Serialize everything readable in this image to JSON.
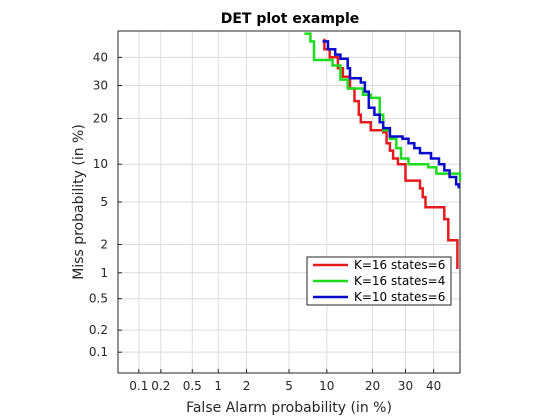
{
  "chart_data": {
    "type": "line",
    "title": "DET plot example",
    "xlabel": "False Alarm probability (in %)",
    "ylabel": "Miss probability (in %)",
    "x_scale": "probit",
    "y_scale": "probit",
    "xlim": [
      0.05,
      50
    ],
    "ylim": [
      0.05,
      50
    ],
    "grid": true,
    "legend_position": "lower-right",
    "x_ticks": [
      {
        "value": 0.1,
        "label": "0.1"
      },
      {
        "value": 0.2,
        "label": "0.2"
      },
      {
        "value": 0.5,
        "label": "0.5"
      },
      {
        "value": 1,
        "label": "1"
      },
      {
        "value": 2,
        "label": "2"
      },
      {
        "value": 5,
        "label": "5"
      },
      {
        "value": 10,
        "label": "10"
      },
      {
        "value": 20,
        "label": "20"
      },
      {
        "value": 30,
        "label": "30"
      },
      {
        "value": 40,
        "label": "40"
      }
    ],
    "y_ticks": [
      {
        "value": 0.1,
        "label": "0.1"
      },
      {
        "value": 0.2,
        "label": "0.2"
      },
      {
        "value": 0.5,
        "label": "0.5"
      },
      {
        "value": 1,
        "label": "1"
      },
      {
        "value": 2,
        "label": "2"
      },
      {
        "value": 5,
        "label": "5"
      },
      {
        "value": 10,
        "label": "10"
      },
      {
        "value": 20,
        "label": "20"
      },
      {
        "value": 30,
        "label": "30"
      },
      {
        "value": 40,
        "label": "40"
      }
    ],
    "series": [
      {
        "name": "K=16 states=6",
        "color": "#e41a1c",
        "points": [
          [
            9.6,
            47
          ],
          [
            9.6,
            43
          ],
          [
            10.5,
            43
          ],
          [
            10.5,
            40
          ],
          [
            12,
            40
          ],
          [
            12,
            36
          ],
          [
            13,
            36
          ],
          [
            13,
            33
          ],
          [
            14.5,
            33
          ],
          [
            14.5,
            29
          ],
          [
            15.5,
            29
          ],
          [
            15.5,
            25
          ],
          [
            16.5,
            25
          ],
          [
            16.5,
            21
          ],
          [
            17,
            21
          ],
          [
            17,
            19
          ],
          [
            19.5,
            19
          ],
          [
            19.5,
            17
          ],
          [
            23,
            17
          ],
          [
            23,
            16.5
          ],
          [
            24,
            16.5
          ],
          [
            24,
            14
          ],
          [
            25,
            14
          ],
          [
            25,
            12.5
          ],
          [
            26,
            12.5
          ],
          [
            26,
            11
          ],
          [
            27.5,
            11
          ],
          [
            27.5,
            10
          ],
          [
            30,
            10
          ],
          [
            30,
            7.5
          ],
          [
            35,
            7.5
          ],
          [
            35,
            6.5
          ],
          [
            36,
            6.5
          ],
          [
            36,
            5.5
          ],
          [
            37,
            5.5
          ],
          [
            37,
            4.5
          ],
          [
            44,
            4.5
          ],
          [
            44,
            3.5
          ],
          [
            45.5,
            3.5
          ],
          [
            45.5,
            2.2
          ],
          [
            49,
            2.2
          ],
          [
            49,
            1.1
          ]
        ]
      },
      {
        "name": "K=16 states=4",
        "color": "#1ddc1d",
        "points": [
          [
            6.7,
            49
          ],
          [
            7.5,
            49
          ],
          [
            7.5,
            46
          ],
          [
            8,
            46
          ],
          [
            8,
            39
          ],
          [
            11,
            39
          ],
          [
            11,
            37
          ],
          [
            12.5,
            37
          ],
          [
            12.5,
            32
          ],
          [
            14,
            32
          ],
          [
            14,
            29
          ],
          [
            17.5,
            29
          ],
          [
            17.5,
            27
          ],
          [
            19.5,
            27
          ],
          [
            19.5,
            26
          ],
          [
            22,
            26
          ],
          [
            22,
            21
          ],
          [
            23,
            21
          ],
          [
            23,
            17
          ],
          [
            25,
            17
          ],
          [
            25,
            15
          ],
          [
            27,
            15
          ],
          [
            27,
            13
          ],
          [
            28.5,
            13
          ],
          [
            28.5,
            11
          ],
          [
            31,
            11
          ],
          [
            31,
            10
          ],
          [
            38,
            10
          ],
          [
            38,
            9.5
          ],
          [
            41,
            9.5
          ],
          [
            41,
            8.5
          ],
          [
            46,
            8.5
          ],
          [
            46,
            8.5
          ],
          [
            50,
            8.5
          ],
          [
            50,
            7.5
          ]
        ]
      },
      {
        "name": "K=10 states=6",
        "color": "#0a0acd",
        "points": [
          [
            9.3,
            46
          ],
          [
            10.2,
            46
          ],
          [
            10.2,
            43
          ],
          [
            11.5,
            43
          ],
          [
            11.5,
            41
          ],
          [
            12.5,
            41
          ],
          [
            12.5,
            39.5
          ],
          [
            14,
            39.5
          ],
          [
            14,
            36
          ],
          [
            14.5,
            36
          ],
          [
            14.5,
            32.5
          ],
          [
            17,
            32.5
          ],
          [
            17,
            31
          ],
          [
            18,
            31
          ],
          [
            18,
            28
          ],
          [
            19,
            28
          ],
          [
            19,
            23
          ],
          [
            20.5,
            23
          ],
          [
            20.5,
            21
          ],
          [
            22,
            21
          ],
          [
            22,
            19
          ],
          [
            23,
            19
          ],
          [
            23,
            17.5
          ],
          [
            25,
            17.5
          ],
          [
            25,
            15.5
          ],
          [
            29,
            15.5
          ],
          [
            29,
            15
          ],
          [
            31,
            15
          ],
          [
            31,
            14
          ],
          [
            33,
            14
          ],
          [
            33,
            13
          ],
          [
            35,
            13
          ],
          [
            35,
            12
          ],
          [
            39,
            12
          ],
          [
            39,
            11
          ],
          [
            42,
            11
          ],
          [
            42,
            10
          ],
          [
            44,
            10
          ],
          [
            44,
            9
          ],
          [
            46,
            9
          ],
          [
            46,
            8
          ],
          [
            48.5,
            8
          ],
          [
            48.5,
            7
          ],
          [
            49.5,
            7
          ],
          [
            49.5,
            6.5
          ]
        ]
      }
    ]
  }
}
